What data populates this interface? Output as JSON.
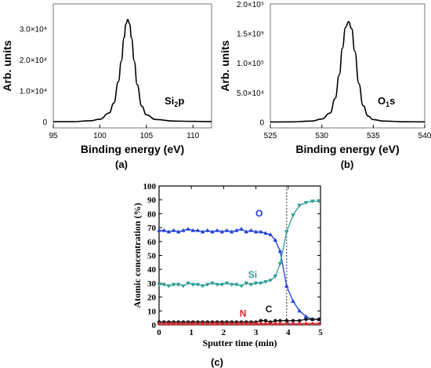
{
  "chart_data": [
    {
      "type": "line",
      "panel_label": "(a)",
      "xlabel": "Binding energy (eV)",
      "ylabel": "Arb. units",
      "xlim": [
        95,
        112
      ],
      "ylim": [
        -2000,
        38000
      ],
      "x_ticks": [
        95,
        100,
        105,
        110
      ],
      "y_ticks": [
        {
          "value": 0,
          "label": "0"
        },
        {
          "value": 10000,
          "label": "1.0×10⁴"
        },
        {
          "value": 20000,
          "label": "2.0×10⁴"
        },
        {
          "value": 30000,
          "label": "3.0×10⁴"
        }
      ],
      "annotation": {
        "text": "Si",
        "sub": "2",
        "rest": "p"
      },
      "series": [
        {
          "peak_center": 103.0,
          "peak_height": 33000,
          "baseline": 0,
          "fwhm": 1.9,
          "x": [
            95,
            97,
            99,
            100,
            101,
            101.5,
            102,
            102.3,
            102.6,
            102.8,
            103.0,
            103.2,
            103.4,
            103.7,
            104.0,
            104.5,
            105,
            106,
            108,
            110,
            112
          ],
          "y": [
            0,
            0,
            300,
            800,
            2800,
            6000,
            13000,
            19500,
            27000,
            31500,
            33000,
            31500,
            27000,
            19500,
            12000,
            5000,
            2200,
            700,
            200,
            100,
            50
          ]
        }
      ]
    },
    {
      "type": "line",
      "panel_label": "(b)",
      "xlabel": "Binding energy (eV)",
      "ylabel": "Arb. units",
      "xlim": [
        525,
        540
      ],
      "ylim": [
        -10000,
        200000
      ],
      "x_ticks": [
        525,
        530,
        535,
        540
      ],
      "y_ticks": [
        {
          "value": 0,
          "label": "0"
        },
        {
          "value": 50000,
          "label": "5.0×10⁴"
        },
        {
          "value": 100000,
          "label": "1.0×10⁵"
        },
        {
          "value": 150000,
          "label": "1.5×10⁵"
        },
        {
          "value": 200000,
          "label": "2.0×10⁵"
        }
      ],
      "annotation": {
        "text": "O",
        "sub": "1",
        "rest": "s"
      },
      "series": [
        {
          "x": [
            525,
            527,
            529,
            530,
            530.8,
            531.3,
            531.7,
            532.0,
            532.3,
            532.6,
            532.9,
            533.2,
            533.6,
            534.0,
            534.5,
            535,
            536,
            538,
            540
          ],
          "y": [
            0,
            200,
            1500,
            5000,
            15000,
            40000,
            80000,
            125000,
            160000,
            170000,
            158000,
            120000,
            65000,
            28000,
            10000,
            4000,
            1500,
            400,
            200
          ]
        }
      ]
    },
    {
      "type": "line",
      "panel_label": "(c)",
      "xlabel": "Sputter time (min)",
      "ylabel": "Atomic concentration (%)",
      "xlim": [
        0,
        5
      ],
      "ylim": [
        0,
        100
      ],
      "x_ticks": [
        0,
        1,
        2,
        3,
        4,
        5
      ],
      "y_ticks": [
        0,
        10,
        20,
        30,
        40,
        50,
        60,
        70,
        80,
        90,
        100
      ],
      "vline": 3.95,
      "series": [
        {
          "name": "O",
          "color": "#1f3fd6",
          "marker": "triangle-up",
          "x": [
            0,
            0.15,
            0.3,
            0.45,
            0.6,
            0.75,
            0.9,
            1.05,
            1.2,
            1.35,
            1.5,
            1.65,
            1.8,
            1.95,
            2.1,
            2.25,
            2.4,
            2.55,
            2.7,
            2.85,
            3.0,
            3.15,
            3.3,
            3.45,
            3.6,
            3.75,
            3.95,
            4.15,
            4.35,
            4.55,
            4.75,
            4.95
          ],
          "y": [
            68,
            68,
            67,
            68,
            67,
            68,
            69,
            68,
            68,
            67,
            68,
            67,
            68,
            67,
            68,
            67,
            68,
            69,
            67,
            68,
            67,
            67,
            66,
            65,
            61,
            53,
            28,
            17,
            10,
            6,
            4,
            4
          ]
        },
        {
          "name": "Si",
          "color": "#2a9d96",
          "marker": "triangle-down",
          "x": [
            0,
            0.15,
            0.3,
            0.45,
            0.6,
            0.75,
            0.9,
            1.05,
            1.2,
            1.35,
            1.5,
            1.65,
            1.8,
            1.95,
            2.1,
            2.25,
            2.4,
            2.55,
            2.7,
            2.85,
            3.0,
            3.15,
            3.3,
            3.45,
            3.6,
            3.75,
            3.95,
            4.15,
            4.35,
            4.55,
            4.75,
            4.95
          ],
          "y": [
            29,
            29,
            28,
            29,
            29,
            28,
            30,
            29,
            29,
            28,
            29,
            30,
            29,
            29,
            30,
            29,
            29,
            28,
            30,
            29,
            30,
            30,
            31,
            32,
            35,
            44,
            67,
            79,
            86,
            88,
            89,
            89
          ]
        },
        {
          "name": "C",
          "color": "#111111",
          "marker": "circle",
          "x": [
            0,
            0.15,
            0.3,
            0.45,
            0.6,
            0.75,
            0.9,
            1.05,
            1.2,
            1.35,
            1.5,
            1.65,
            1.8,
            1.95,
            2.1,
            2.25,
            2.4,
            2.55,
            2.7,
            2.85,
            3.0,
            3.15,
            3.3,
            3.45,
            3.6,
            3.75,
            3.95,
            4.15,
            4.35,
            4.55,
            4.75,
            4.95
          ],
          "y": [
            2,
            2,
            2,
            2,
            2,
            2,
            2,
            2,
            2,
            2,
            2,
            2,
            2,
            2,
            2,
            2,
            2,
            2,
            2,
            2,
            2,
            3,
            3,
            2,
            3,
            3,
            3,
            3,
            3,
            4,
            4,
            4
          ]
        },
        {
          "name": "N",
          "color": "#e0202a",
          "marker": "triangle-up",
          "x": [
            0,
            0.15,
            0.3,
            0.45,
            0.6,
            0.75,
            0.9,
            1.05,
            1.2,
            1.35,
            1.5,
            1.65,
            1.8,
            1.95,
            2.1,
            2.25,
            2.4,
            2.55,
            2.7,
            2.85,
            3.0,
            3.15,
            3.3,
            3.45,
            3.6,
            3.75,
            3.95,
            4.15,
            4.35,
            4.55,
            4.75,
            4.95
          ],
          "y": [
            1,
            1,
            1,
            1,
            1,
            1,
            1,
            1,
            1,
            1,
            1,
            1,
            1,
            1,
            1,
            1,
            1,
            1,
            1,
            1,
            1,
            1,
            1,
            1,
            1,
            1,
            1,
            1,
            1,
            1,
            1,
            1
          ]
        }
      ]
    }
  ]
}
